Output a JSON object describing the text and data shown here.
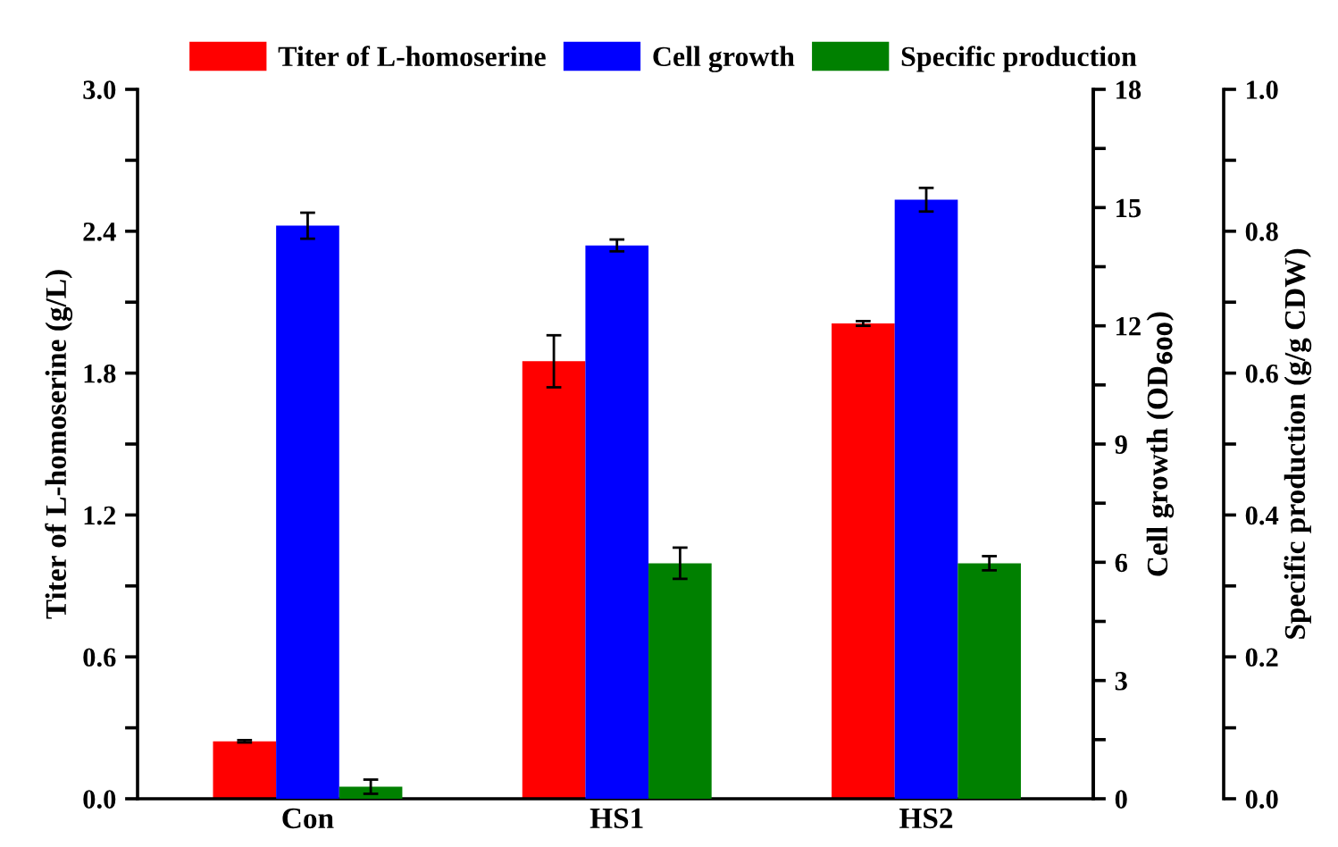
{
  "chart_data": {
    "type": "bar",
    "categories": [
      "Con",
      "HS1",
      "HS2"
    ],
    "ylabel": "Titer of L-homoserine (g/L)",
    "y2label": "Cell growth (OD$_{600}$)",
    "y3label": "Specific production (g/g CDW)",
    "series": [
      {
        "name": "Titer of L-homoserine",
        "color": "#ff0000",
        "values": [
          0.243,
          1.85,
          2.01
        ],
        "errors": [
          0.005,
          0.11,
          0.01
        ]
      },
      {
        "name": "Cell growth",
        "color": "#0000ff",
        "values": [
          14.54,
          14.04,
          15.2
        ],
        "errors": [
          0.33,
          0.15,
          0.3
        ],
        "axis": "y2"
      },
      {
        "name": "Specific production",
        "color": "#008000",
        "values": [
          0.017,
          0.332,
          0.332
        ],
        "errors": [
          0.01,
          0.022,
          0.01
        ],
        "axis": "y3"
      }
    ],
    "ylim": [
      0,
      3.0
    ],
    "yticks": [
      {
        "value": 0,
        "label": "0.0"
      },
      {
        "value": 0.3,
        "label": null
      },
      0.6,
      {
        "value": 0.9,
        "label": null
      },
      1.2,
      {
        "value": 1.5,
        "label": null
      },
      1.8,
      {
        "value": 2.1,
        "label": null
      },
      2.4,
      {
        "value": 2.7,
        "label": null
      },
      {
        "value": 3,
        "label": "3.0"
      }
    ],
    "y2lim": [
      0,
      18
    ],
    "y2ticks": [
      0,
      {
        "value": 1.5,
        "label": null
      },
      3,
      {
        "value": 4.5,
        "label": null
      },
      6,
      {
        "value": 7.5,
        "label": null
      },
      9,
      {
        "value": 10.5,
        "label": null
      },
      12,
      {
        "value": 13.5,
        "label": null
      },
      15,
      {
        "value": 16.5,
        "label": null
      },
      18
    ],
    "y3lim": [
      0,
      1.0
    ],
    "y3ticks": [
      {
        "value": 0,
        "label": "0.0"
      },
      {
        "value": 0.1,
        "label": null
      },
      0.2,
      {
        "value": 0.3,
        "label": null
      },
      0.4,
      {
        "value": 0.5,
        "label": null
      },
      0.6,
      {
        "value": 0.7,
        "label": null
      },
      0.8,
      {
        "value": 0.9,
        "label": null
      },
      {
        "value": 1,
        "label": "1.0"
      }
    ],
    "legend": "top",
    "grid": false
  }
}
